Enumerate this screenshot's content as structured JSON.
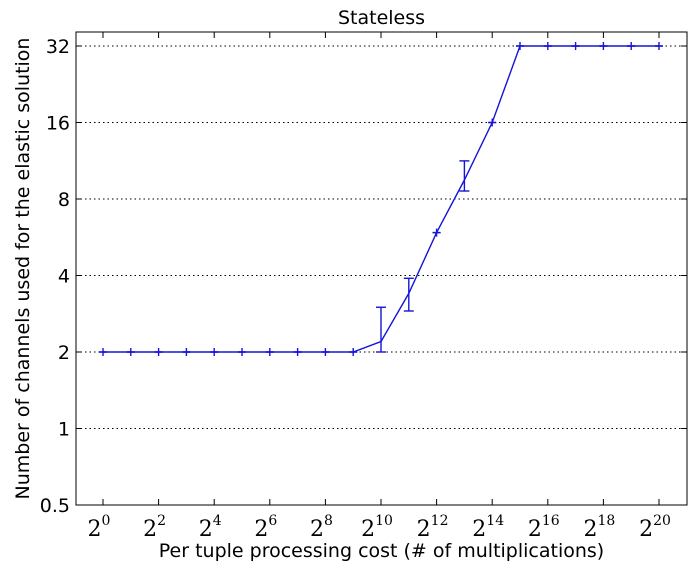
{
  "chart_data": {
    "type": "line",
    "title": "Stateless",
    "xlabel": "Per tuple processing cost (# of multiplications)",
    "ylabel": "Number of channels used for the elastic solution",
    "x_scale": "log2",
    "y_scale": "log2",
    "xlim": [
      1,
      1048576
    ],
    "ylim": [
      0.5,
      32
    ],
    "yticks": [
      0.5,
      1,
      2,
      4,
      8,
      16,
      32
    ],
    "ytick_labels": [
      "0.5",
      "1",
      "2",
      "4",
      "8",
      "16",
      "32"
    ],
    "xticks": [
      1,
      4,
      16,
      64,
      256,
      1024,
      4096,
      16384,
      65536,
      262144,
      1048576
    ],
    "xtick_labels": [
      {
        "base": "2",
        "exp": "0"
      },
      {
        "base": "2",
        "exp": "2"
      },
      {
        "base": "2",
        "exp": "4"
      },
      {
        "base": "2",
        "exp": "6"
      },
      {
        "base": "2",
        "exp": "8"
      },
      {
        "base": "2",
        "exp": "10"
      },
      {
        "base": "2",
        "exp": "12"
      },
      {
        "base": "2",
        "exp": "14"
      },
      {
        "base": "2",
        "exp": "16"
      },
      {
        "base": "2",
        "exp": "18"
      },
      {
        "base": "2",
        "exp": "20"
      }
    ],
    "grid": "horizontal dotted",
    "color": "#1515d6",
    "series": [
      {
        "x": [
          1,
          2,
          4,
          8,
          16,
          32,
          64,
          128,
          256,
          512,
          1024,
          2048,
          4096,
          8192,
          16384,
          32768,
          65536,
          131072,
          262144,
          524288,
          1048576
        ],
        "y": [
          2,
          2,
          2,
          2,
          2,
          2,
          2,
          2,
          2,
          2,
          2.2,
          3.4,
          5.9,
          9.5,
          16,
          32,
          32,
          32,
          32,
          32,
          32
        ],
        "err_low": [
          2,
          2,
          2,
          2,
          2,
          2,
          2,
          2,
          2,
          2,
          2.0,
          2.9,
          5.9,
          8.6,
          16,
          32,
          32,
          32,
          32,
          32,
          32
        ],
        "err_high": [
          2,
          2,
          2,
          2,
          2,
          2,
          2,
          2,
          2,
          2,
          3.0,
          3.9,
          5.9,
          11.3,
          16,
          32,
          32,
          32,
          32,
          32,
          32
        ]
      }
    ]
  }
}
